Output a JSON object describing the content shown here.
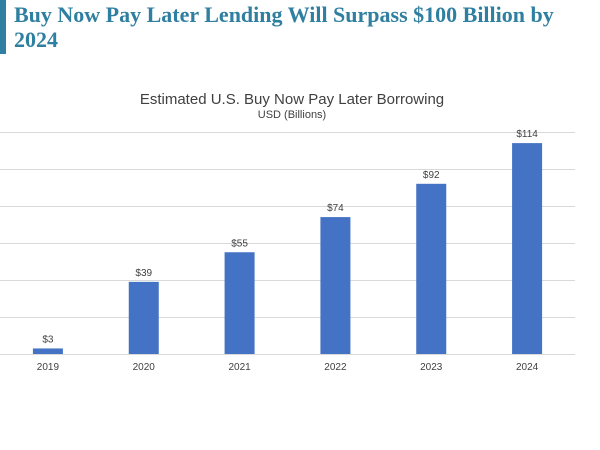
{
  "slide": {
    "title": "Buy Now Pay Later Lending Will Surpass $100 Billion by 2024"
  },
  "colors": {
    "accent": "#2f7fa0",
    "bar": "#4472c4",
    "grid": "#d9d9d9"
  },
  "chart_data": {
    "type": "bar",
    "title": "Estimated U.S. Buy Now Pay Later Borrowing",
    "subtitle": "USD (Billions)",
    "categories": [
      "2019",
      "2020",
      "2021",
      "2022",
      "2023",
      "2024"
    ],
    "values": [
      3,
      39,
      55,
      74,
      92,
      114
    ],
    "data_labels": [
      "$3",
      "$39",
      "$55",
      "$74",
      "$92",
      "$114"
    ],
    "ylim": [
      0,
      120
    ],
    "grid": true,
    "legend": "none"
  }
}
